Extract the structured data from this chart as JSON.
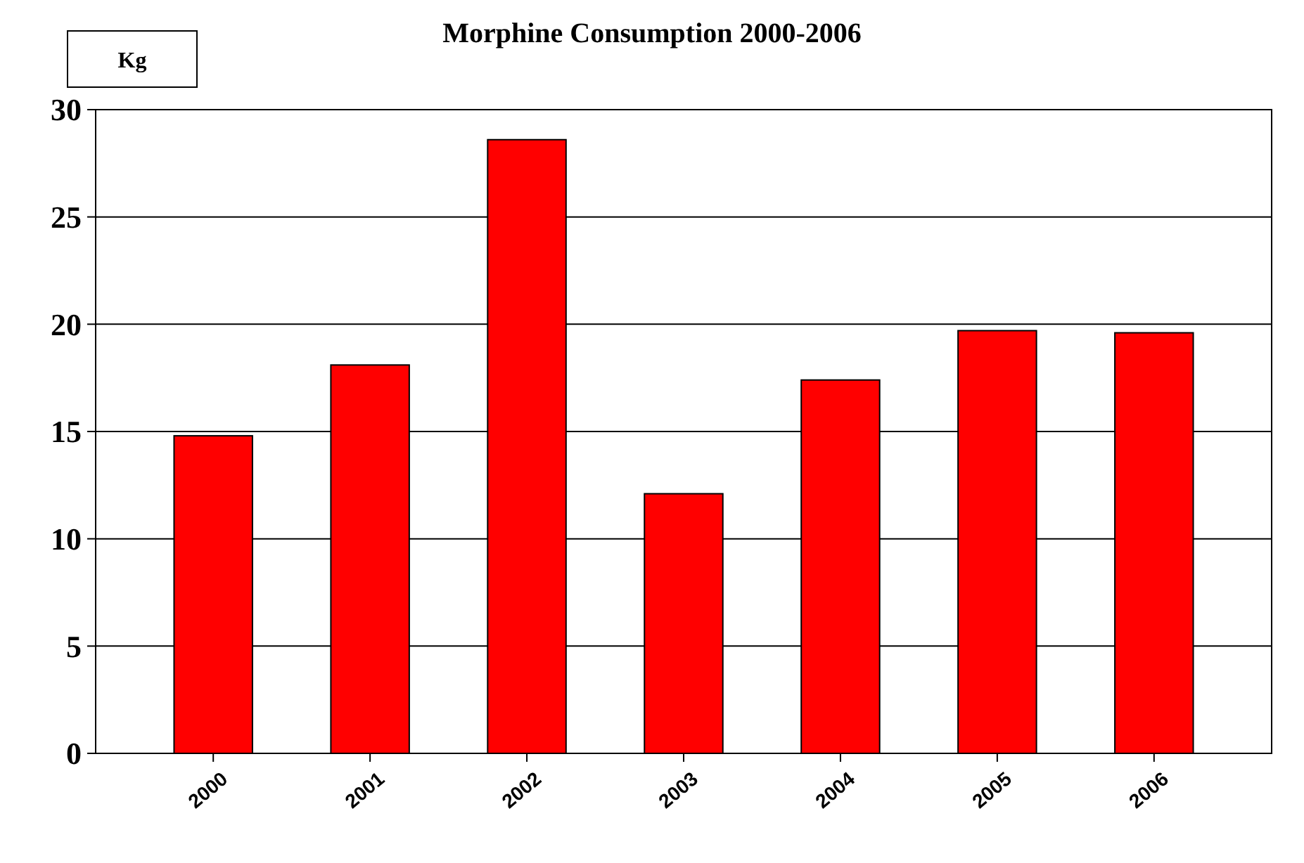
{
  "chart_data": {
    "type": "bar",
    "title": "Morphine Consumption 2000-2006",
    "ylabel": "Kg",
    "categories": [
      "2000",
      "2001",
      "2002",
      "2003",
      "2004",
      "2005",
      "2006"
    ],
    "values": [
      14.8,
      18.1,
      28.6,
      12.1,
      17.4,
      19.7,
      19.6
    ],
    "color": "#ff0000",
    "ylim": [
      0,
      30
    ],
    "yticks": [
      0,
      5,
      10,
      15,
      20,
      25,
      30
    ],
    "grid": "y"
  }
}
